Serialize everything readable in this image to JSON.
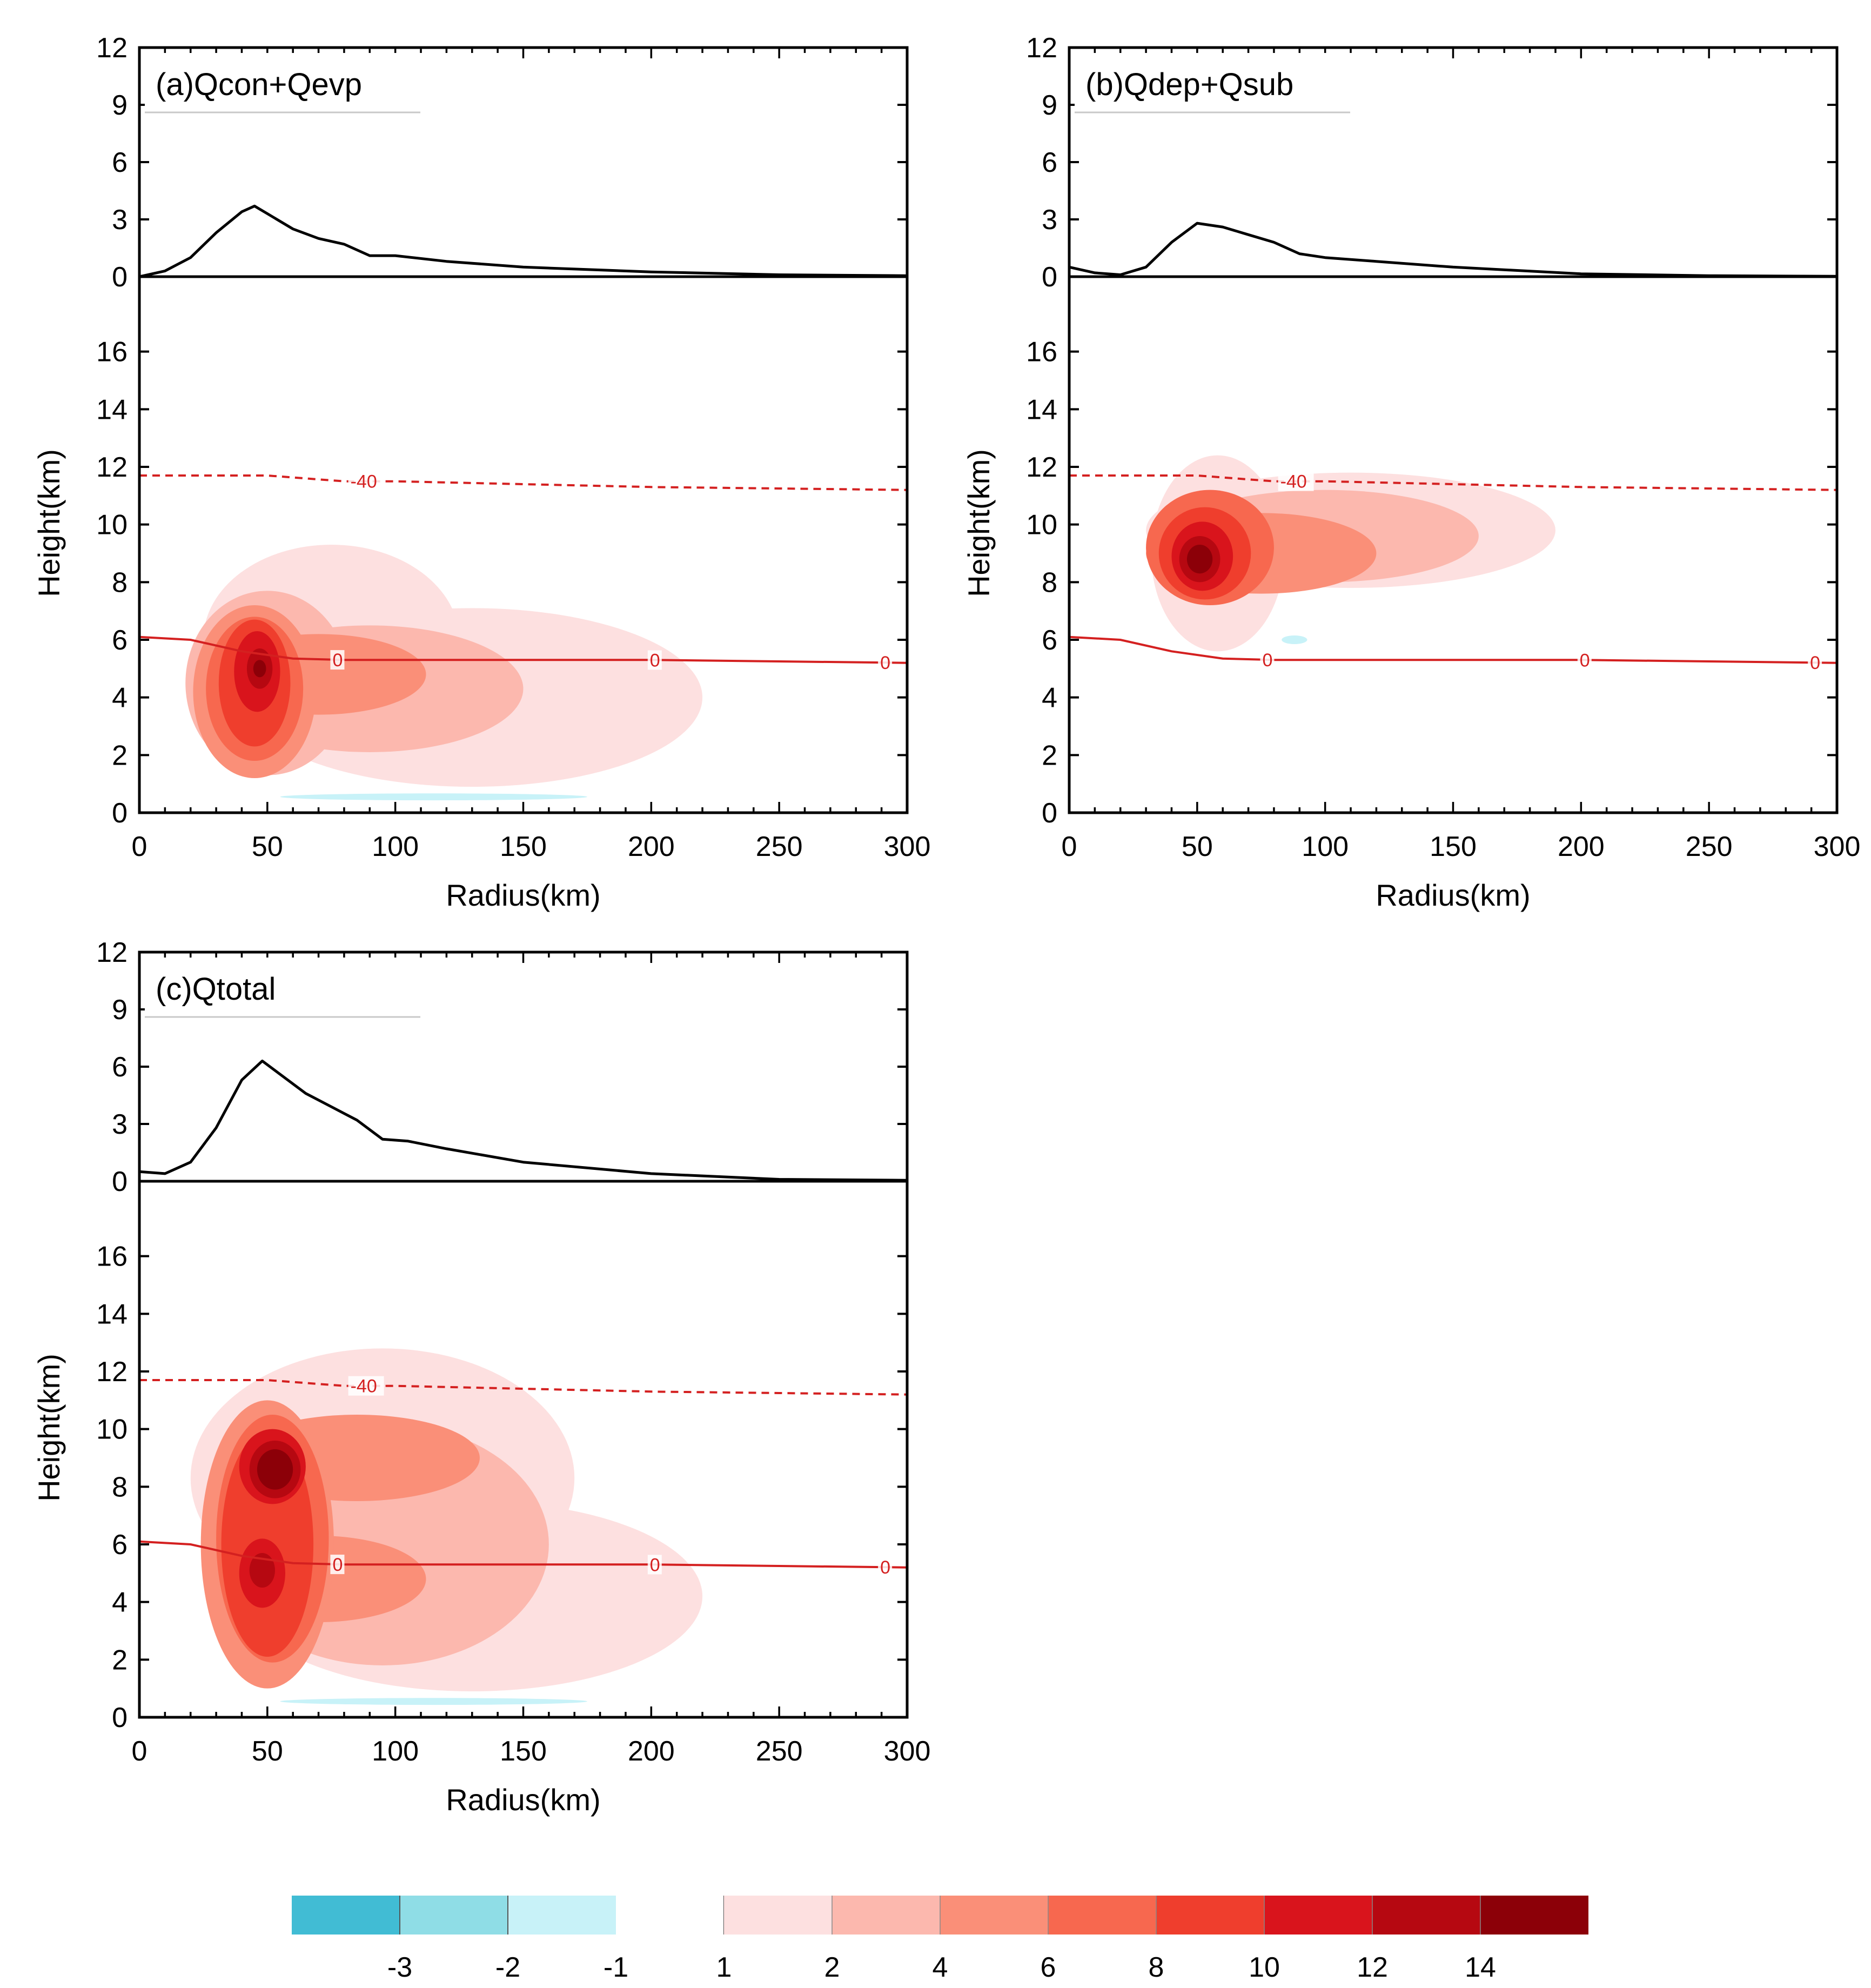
{
  "chart_data": [
    {
      "type": "heatmap",
      "panel": "a",
      "title": "(a)Qcon+Qevp",
      "xlabel": "Radius(km)",
      "ylabel": "Height(km)",
      "xlim": [
        0,
        300
      ],
      "ylim": [
        0,
        18.6
      ],
      "xticks": [
        "0",
        "50",
        "100",
        "150",
        "200",
        "250",
        "300"
      ],
      "yticks": [
        "0",
        "2",
        "4",
        "6",
        "8",
        "10",
        "12",
        "14",
        "16"
      ],
      "top_line": {
        "ylim": [
          0,
          12
        ],
        "yticks": [
          "0",
          "3",
          "6",
          "9",
          "12"
        ],
        "x": [
          0,
          10,
          20,
          30,
          40,
          45,
          50,
          60,
          70,
          80,
          90,
          100,
          120,
          150,
          200,
          250,
          300
        ],
        "y": [
          0,
          0.3,
          1.0,
          2.3,
          3.4,
          3.7,
          3.3,
          2.5,
          2.0,
          1.7,
          1.1,
          1.1,
          0.8,
          0.5,
          0.25,
          0.1,
          0.05
        ]
      },
      "isotherms": [
        {
          "label": "-40",
          "x": [
            0,
            50,
            80,
            100,
            150,
            200,
            250,
            300
          ],
          "y": [
            11.7,
            11.7,
            11.5,
            11.5,
            11.4,
            11.3,
            11.25,
            11.2
          ]
        },
        {
          "label": "0",
          "x": [
            0,
            20,
            40,
            60,
            80,
            100,
            150,
            200,
            250,
            300
          ],
          "y": [
            6.1,
            6.0,
            5.6,
            5.35,
            5.3,
            5.3,
            5.3,
            5.3,
            5.25,
            5.2
          ]
        }
      ],
      "blobs": [
        {
          "level": 1,
          "cx": 130,
          "cy": 4.0,
          "rx": 90,
          "ry": 3.1
        },
        {
          "level": 1,
          "cx": 75,
          "cy": 6.0,
          "rx": 50,
          "ry": 3.3
        },
        {
          "level": 2,
          "cx": 90,
          "cy": 4.3,
          "rx": 60,
          "ry": 2.2
        },
        {
          "level": 2,
          "cx": 50,
          "cy": 4.5,
          "rx": 32,
          "ry": 3.2
        },
        {
          "level": 4,
          "cx": 70,
          "cy": 4.8,
          "rx": 42,
          "ry": 1.4
        },
        {
          "level": 4,
          "cx": 45,
          "cy": 4.2,
          "rx": 24,
          "ry": 3.0
        },
        {
          "level": 6,
          "cx": 45,
          "cy": 4.3,
          "rx": 19,
          "ry": 2.5
        },
        {
          "level": 8,
          "cx": 45,
          "cy": 4.5,
          "rx": 14,
          "ry": 2.2
        },
        {
          "level": 10,
          "cx": 46,
          "cy": 4.9,
          "rx": 9,
          "ry": 1.4
        },
        {
          "level": 12,
          "cx": 47,
          "cy": 5.0,
          "rx": 5,
          "ry": 0.7
        },
        {
          "level": 14,
          "cx": 47,
          "cy": 5.0,
          "rx": 2.5,
          "ry": 0.3
        },
        {
          "level": -1,
          "cx": 115,
          "cy": 0.55,
          "rx": 60,
          "ry": 0.12
        }
      ]
    },
    {
      "type": "heatmap",
      "panel": "b",
      "title": "(b)Qdep+Qsub",
      "xlabel": "Radius(km)",
      "ylabel": "Height(km)",
      "xlim": [
        0,
        300
      ],
      "ylim": [
        0,
        18.6
      ],
      "xticks": [
        "0",
        "50",
        "100",
        "150",
        "200",
        "250",
        "300"
      ],
      "yticks": [
        "0",
        "2",
        "4",
        "6",
        "8",
        "10",
        "12",
        "14",
        "16"
      ],
      "top_line": {
        "ylim": [
          0,
          12
        ],
        "yticks": [
          "0",
          "3",
          "6",
          "9",
          "12"
        ],
        "x": [
          0,
          10,
          20,
          30,
          40,
          50,
          60,
          70,
          80,
          90,
          100,
          120,
          150,
          200,
          250,
          300
        ],
        "y": [
          0.5,
          0.2,
          0.1,
          0.5,
          1.8,
          2.8,
          2.6,
          2.2,
          1.8,
          1.2,
          1.0,
          0.8,
          0.5,
          0.15,
          0.05,
          0.02
        ]
      },
      "isotherms": [
        {
          "label": "-40",
          "x": [
            0,
            50,
            80,
            100,
            150,
            200,
            250,
            300
          ],
          "y": [
            11.7,
            11.7,
            11.5,
            11.5,
            11.4,
            11.3,
            11.25,
            11.2
          ]
        },
        {
          "label": "0",
          "x": [
            0,
            20,
            40,
            60,
            80,
            100,
            150,
            200,
            250,
            300
          ],
          "y": [
            6.1,
            6.0,
            5.6,
            5.35,
            5.3,
            5.3,
            5.3,
            5.3,
            5.25,
            5.2
          ]
        }
      ],
      "blobs": [
        {
          "level": 1,
          "cx": 110,
          "cy": 9.8,
          "rx": 80,
          "ry": 2.0
        },
        {
          "level": 1,
          "cx": 58,
          "cy": 9.0,
          "rx": 26,
          "ry": 3.4
        },
        {
          "level": 2,
          "cx": 100,
          "cy": 9.6,
          "rx": 60,
          "ry": 1.6
        },
        {
          "level": 4,
          "cx": 75,
          "cy": 9.0,
          "rx": 45,
          "ry": 1.4
        },
        {
          "level": 6,
          "cx": 55,
          "cy": 9.2,
          "rx": 25,
          "ry": 2.0
        },
        {
          "level": 8,
          "cx": 53,
          "cy": 9.0,
          "rx": 18,
          "ry": 1.6
        },
        {
          "level": 10,
          "cx": 52,
          "cy": 8.9,
          "rx": 12,
          "ry": 1.2
        },
        {
          "level": 12,
          "cx": 51,
          "cy": 8.8,
          "rx": 8,
          "ry": 0.8
        },
        {
          "level": 14,
          "cx": 51,
          "cy": 8.8,
          "rx": 5,
          "ry": 0.5
        },
        {
          "level": -1,
          "cx": 88,
          "cy": 6.0,
          "rx": 5,
          "ry": 0.15
        }
      ]
    },
    {
      "type": "heatmap",
      "panel": "c",
      "title": "(c)Qtotal",
      "xlabel": "Radius(km)",
      "ylabel": "Height(km)",
      "xlim": [
        0,
        300
      ],
      "ylim": [
        0,
        18.6
      ],
      "xticks": [
        "0",
        "50",
        "100",
        "150",
        "200",
        "250",
        "300"
      ],
      "yticks": [
        "0",
        "2",
        "4",
        "6",
        "8",
        "10",
        "12",
        "14",
        "16"
      ],
      "top_line": {
        "ylim": [
          0,
          12
        ],
        "yticks": [
          "0",
          "3",
          "6",
          "9",
          "12"
        ],
        "x": [
          0,
          10,
          20,
          30,
          40,
          48,
          55,
          65,
          75,
          85,
          95,
          105,
          120,
          150,
          200,
          250,
          300
        ],
        "y": [
          0.5,
          0.4,
          1.0,
          2.8,
          5.3,
          6.3,
          5.6,
          4.6,
          3.9,
          3.2,
          2.2,
          2.1,
          1.7,
          1.0,
          0.4,
          0.1,
          0.05
        ]
      },
      "isotherms": [
        {
          "label": "-40",
          "x": [
            0,
            50,
            80,
            100,
            150,
            200,
            250,
            300
          ],
          "y": [
            11.7,
            11.7,
            11.5,
            11.5,
            11.4,
            11.3,
            11.25,
            11.2
          ]
        },
        {
          "label": "0",
          "x": [
            0,
            20,
            40,
            60,
            80,
            100,
            150,
            200,
            250,
            300
          ],
          "y": [
            6.1,
            6.0,
            5.6,
            5.35,
            5.3,
            5.3,
            5.3,
            5.3,
            5.25,
            5.2
          ]
        }
      ],
      "blobs": [
        {
          "level": 1,
          "cx": 130,
          "cy": 4.2,
          "rx": 90,
          "ry": 3.3
        },
        {
          "level": 1,
          "cx": 95,
          "cy": 8.3,
          "rx": 75,
          "ry": 4.5
        },
        {
          "level": 2,
          "cx": 95,
          "cy": 6.0,
          "rx": 65,
          "ry": 4.2
        },
        {
          "level": 4,
          "cx": 85,
          "cy": 9.0,
          "rx": 48,
          "ry": 1.5
        },
        {
          "level": 4,
          "cx": 70,
          "cy": 4.8,
          "rx": 42,
          "ry": 1.5
        },
        {
          "level": 4,
          "cx": 50,
          "cy": 6.0,
          "rx": 26,
          "ry": 5.0
        },
        {
          "level": 6,
          "cx": 52,
          "cy": 6.2,
          "rx": 22,
          "ry": 4.3
        },
        {
          "level": 8,
          "cx": 50,
          "cy": 6.0,
          "rx": 18,
          "ry": 3.9
        },
        {
          "level": 10,
          "cx": 52,
          "cy": 8.7,
          "rx": 13,
          "ry": 1.3
        },
        {
          "level": 10,
          "cx": 48,
          "cy": 5.0,
          "rx": 9,
          "ry": 1.2
        },
        {
          "level": 12,
          "cx": 53,
          "cy": 8.6,
          "rx": 10,
          "ry": 1.0
        },
        {
          "level": 12,
          "cx": 48,
          "cy": 5.1,
          "rx": 5,
          "ry": 0.6
        },
        {
          "level": 14,
          "cx": 53,
          "cy": 8.6,
          "rx": 7,
          "ry": 0.7
        },
        {
          "level": -1,
          "cx": 115,
          "cy": 0.55,
          "rx": 60,
          "ry": 0.12
        }
      ]
    }
  ],
  "colorbar": {
    "negative": [
      {
        "label": "-3",
        "color": "#41bcd4"
      },
      {
        "label": "-2",
        "color": "#8fdde6"
      },
      {
        "label": "-1",
        "color": "#c8f2f8"
      }
    ],
    "positive_labels": [
      "1",
      "2",
      "4",
      "6",
      "8",
      "10",
      "12",
      "14"
    ],
    "positive_colors": [
      "#fde0e0",
      "#fcb8ae",
      "#fa8f78",
      "#f7684f",
      "#ef3e2d",
      "#d9141c",
      "#b60811",
      "#8c0008"
    ]
  }
}
